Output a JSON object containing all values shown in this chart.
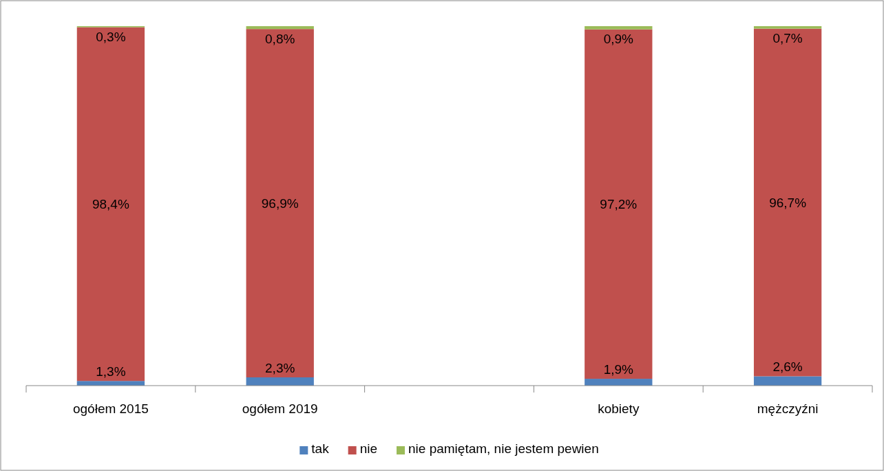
{
  "chart_data": {
    "type": "bar",
    "stacked": true,
    "categories": [
      "ogółem 2015",
      "ogółem 2019",
      null,
      "kobiety",
      "mężczyźni"
    ],
    "series": [
      {
        "name": "tak",
        "color": "#4f81bd",
        "values": [
          1.3,
          2.3,
          null,
          1.9,
          2.6
        ],
        "value_labels": [
          "1,3%",
          "2,3%",
          null,
          "1,9%",
          "2,6%"
        ]
      },
      {
        "name": "nie",
        "color": "#c0504d",
        "values": [
          98.4,
          96.9,
          null,
          97.2,
          96.7
        ],
        "value_labels": [
          "98,4%",
          "96,9%",
          null,
          "97,2%",
          "96,7%"
        ]
      },
      {
        "name": "nie pamiętam, nie jestem pewien",
        "color": "#9bbb59",
        "values": [
          0.3,
          0.8,
          null,
          0.9,
          0.7
        ],
        "value_labels": [
          "0,3%",
          "0,8%",
          null,
          "0,9%",
          "0,7%"
        ]
      }
    ],
    "ylim": [
      0,
      100
    ],
    "tick_labels": "x",
    "legend": "bottom"
  }
}
